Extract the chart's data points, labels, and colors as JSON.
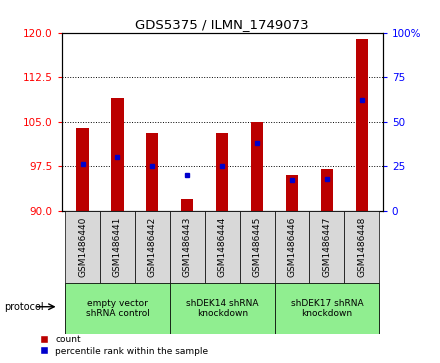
{
  "title": "GDS5375 / ILMN_1749073",
  "samples": [
    "GSM1486440",
    "GSM1486441",
    "GSM1486442",
    "GSM1486443",
    "GSM1486444",
    "GSM1486445",
    "GSM1486446",
    "GSM1486447",
    "GSM1486448"
  ],
  "count_values": [
    104,
    109,
    103,
    92,
    103,
    105,
    96,
    97,
    119
  ],
  "count_base": 90,
  "percentile_values": [
    26,
    30,
    25,
    20,
    25,
    38,
    17,
    18,
    62
  ],
  "protocols": [
    {
      "label": "empty vector\nshRNA control",
      "start": 0,
      "end": 3,
      "color": "#90ee90"
    },
    {
      "label": "shDEK14 shRNA\nknockdown",
      "start": 3,
      "end": 6,
      "color": "#90ee90"
    },
    {
      "label": "shDEK17 shRNA\nknockdown",
      "start": 6,
      "end": 9,
      "color": "#90ee90"
    }
  ],
  "ylim_left": [
    90,
    120
  ],
  "yticks_left": [
    90,
    97.5,
    105,
    112.5,
    120
  ],
  "ylim_right": [
    0,
    100
  ],
  "yticks_right": [
    0,
    25,
    50,
    75,
    100
  ],
  "bar_color": "#bb0000",
  "percentile_color": "#0000cc",
  "background_color": "#ffffff",
  "grid_color": "#000000",
  "protocol_label": "protocol",
  "legend_count": "count",
  "legend_percentile": "percentile rank within the sample",
  "bar_width": 0.35
}
